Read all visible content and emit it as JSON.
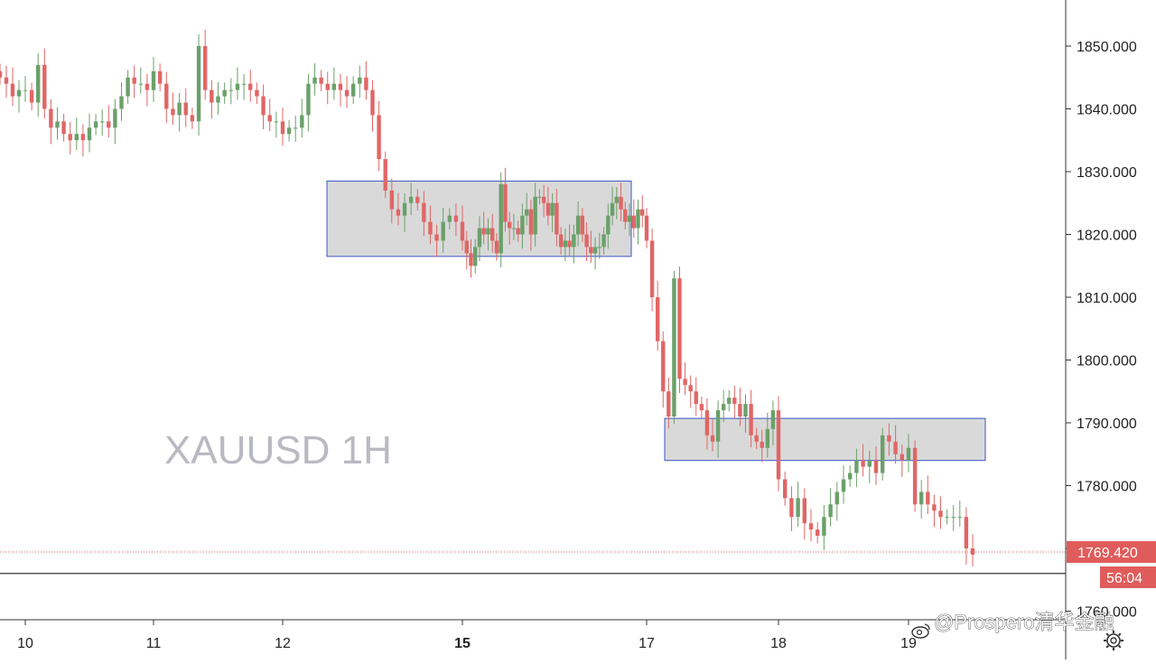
{
  "chart_data": {
    "type": "candlestick",
    "symbol_watermark": "XAUUSD 1H",
    "y_axis": {
      "ticks": [
        "1760.000",
        "1770.000",
        "1780.000",
        "1790.000",
        "1800.000",
        "1810.000",
        "1820.000",
        "1830.000",
        "1840.000",
        "1850.000"
      ],
      "range": [
        1757,
        1858
      ]
    },
    "x_axis": {
      "ticks": [
        {
          "label": "10",
          "bold": false
        },
        {
          "label": "11",
          "bold": false
        },
        {
          "label": "12",
          "bold": false
        },
        {
          "label": "15",
          "bold": true
        },
        {
          "label": "17",
          "bold": false
        },
        {
          "label": "18",
          "bold": false
        },
        {
          "label": "19",
          "bold": false
        }
      ]
    },
    "last_price": {
      "value": 1769.42,
      "label": "1769.420",
      "countdown": "56:04"
    },
    "horizontal_line": 1766,
    "zones": [
      {
        "from_label": "12",
        "to_label": "17",
        "low": 1816.5,
        "high": 1828.5
      },
      {
        "from_label": "17",
        "to_label": "19",
        "low": 1784,
        "high": 1790.7
      }
    ],
    "closes": [
      1845,
      1844,
      1842,
      1843,
      1843,
      1841,
      1847,
      1840,
      1837,
      1838,
      1836,
      1835,
      1836,
      1835,
      1837,
      1838,
      1838,
      1837,
      1840,
      1842,
      1845,
      1844,
      1844,
      1843,
      1846,
      1844,
      1840,
      1839,
      1841,
      1839,
      1838,
      1850,
      1843,
      1841,
      1842,
      1843,
      1843,
      1844,
      1844,
      1843,
      1842,
      1839,
      1838,
      1838,
      1836,
      1837,
      1837,
      1839,
      1844,
      1845,
      1844,
      1843,
      1844,
      1843,
      1842,
      1844,
      1845,
      1843,
      1839,
      1832,
      1827,
      1824,
      1823,
      1825,
      1826,
      1825,
      1822,
      1820,
      1819,
      1822,
      1823,
      1822,
      1819,
      1817,
      1815,
      1818,
      1821,
      1820,
      1821,
      1819,
      1817,
      1828,
      1822,
      1821,
      1821,
      1820,
      1823,
      1824,
      1820,
      1826,
      1826,
      1825,
      1823,
      1825,
      1820,
      1818,
      1819,
      1818,
      1820,
      1823,
      1820,
      1818,
      1817,
      1818,
      1818,
      1820,
      1823,
      1825,
      1826,
      1824,
      1822,
      1823,
      1821,
      1824,
      1823,
      1819,
      1810,
      1803,
      1795,
      1791,
      1813,
      1797,
      1796,
      1795,
      1793,
      1792,
      1788,
      1787,
      1792,
      1793,
      1794,
      1793,
      1791,
      1793,
      1788,
      1787,
      1786,
      1789,
      1792,
      1781,
      1778,
      1775,
      1778,
      1774,
      1773,
      1772,
      1775,
      1777,
      1779,
      1781,
      1782,
      1784,
      1783,
      1784,
      1782,
      1788,
      1787,
      1785,
      1784,
      1786,
      1777,
      1779,
      1777,
      1776,
      1775,
      1775,
      1775,
      1775,
      1770,
      1769
    ]
  },
  "credit": "@Prospero清华金融",
  "icons": {
    "settings": "gear-icon",
    "credit_logo": "weibo-icon"
  },
  "colors": {
    "up": "#6ba06a",
    "down": "#e06666",
    "zone_fill": "#d9d9d9",
    "zone_border": "#3b55c7",
    "price_label_bg": "#e05c5c"
  }
}
